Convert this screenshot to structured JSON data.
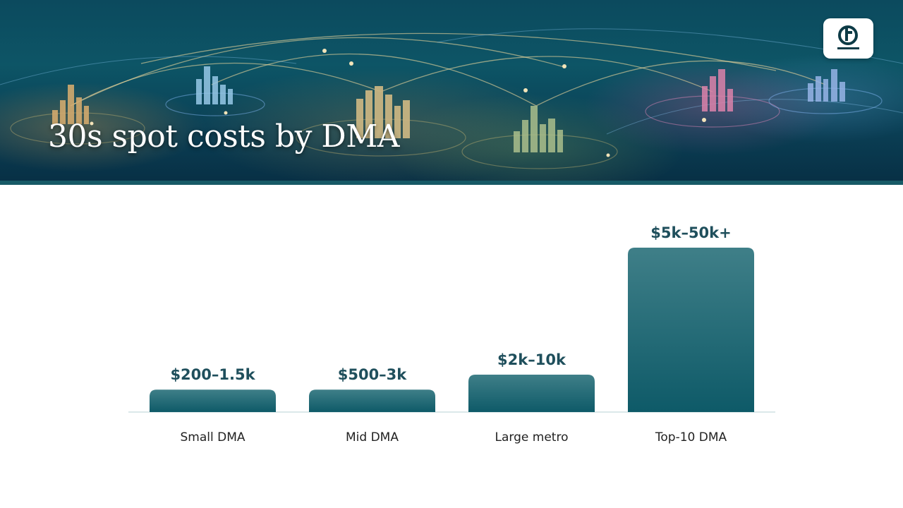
{
  "title": "30s spot costs by DMA",
  "logo": {
    "icon": "tv-circle-logo"
  },
  "colors": {
    "bar_top": "#3f7f88",
    "bar_bottom": "#0e5a68",
    "label": "#1f4f5c",
    "baseline": "#cfe0e3",
    "banner": "#0c4a5e"
  },
  "chart_data": {
    "type": "bar",
    "title": "30s spot costs by DMA",
    "categories": [
      "Small DMA",
      "Mid DMA",
      "Large metro",
      "Top-10 DMA"
    ],
    "value_labels": [
      "$200–1.5k",
      "$500–3k",
      "$2k–10k",
      "$5k–50k+"
    ],
    "values": [
      1.5,
      1.5,
      2.5,
      11
    ],
    "xlabel": "",
    "ylabel": "",
    "ylim": [
      0,
      11
    ],
    "grid": false,
    "legend": "none"
  }
}
